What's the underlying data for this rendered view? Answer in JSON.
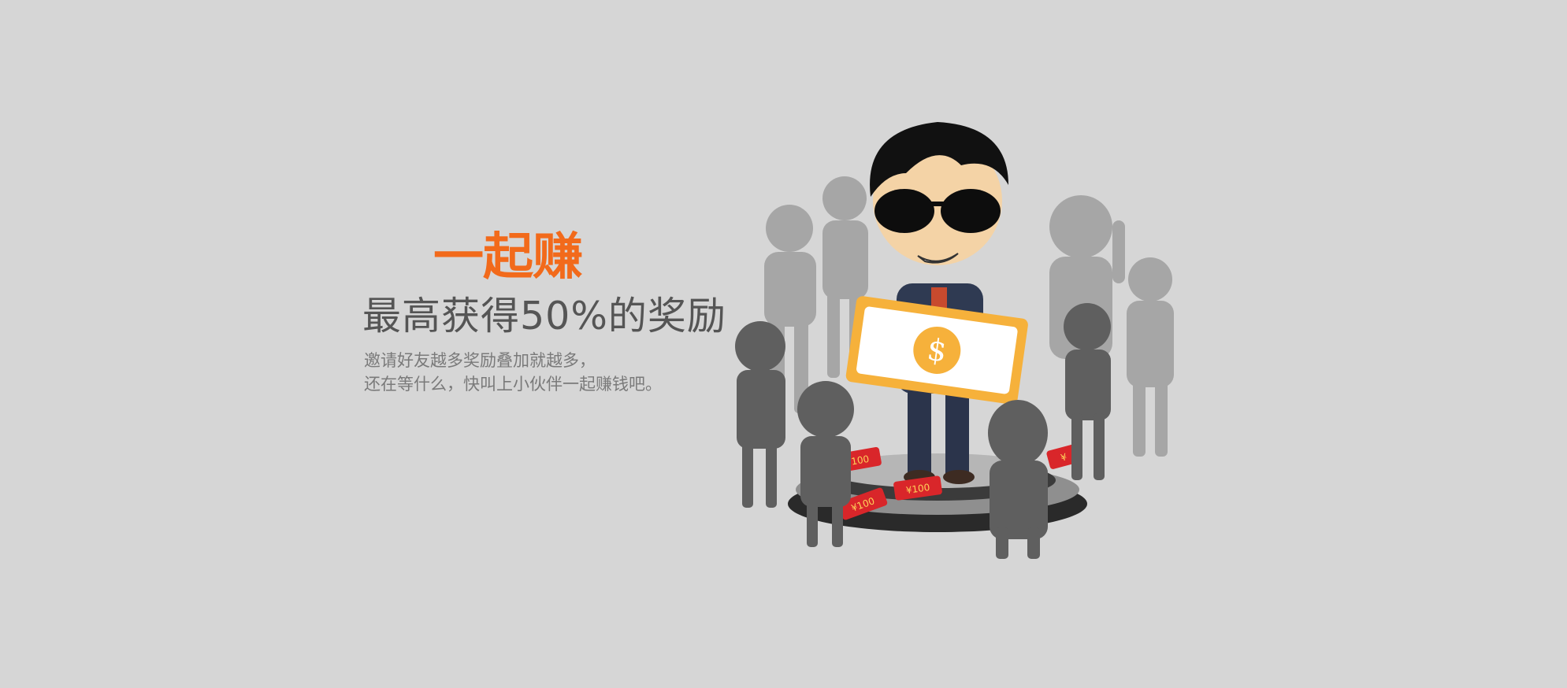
{
  "banner": {
    "title": "一起赚",
    "subtitle": "最高获得50%的奖励",
    "description": [
      "邀请好友越多奖励叠加就越多，",
      "还在等什么，快叫上小伙伴一起赚钱吧。"
    ]
  },
  "illustration": {
    "banknote_symbol": "$",
    "red_tag_labels": [
      "¥100",
      "¥100",
      "¥100",
      "¥"
    ]
  },
  "colors": {
    "background": "#d6d6d6",
    "accent_orange": "#f26a1b",
    "subtitle_gray": "#555555",
    "desc_gray": "#7a7a7a",
    "silhouette_light": "#9e9e9e",
    "silhouette_dark": "#5f5f5f",
    "note_yellow": "#f6b13b",
    "tag_red": "#d9262a"
  }
}
